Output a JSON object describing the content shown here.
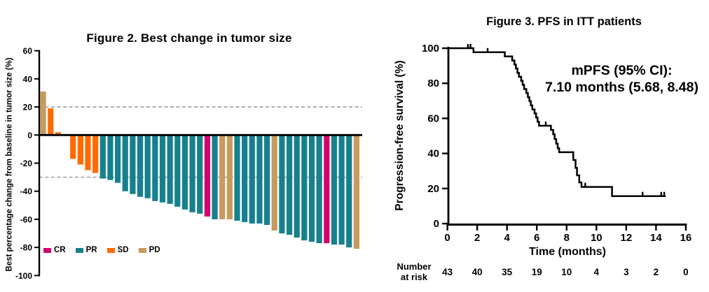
{
  "figure2": {
    "title": "Figure 2.  Best change in tumor size",
    "y_axis_label": "Best percentage change from baseline in tumor size (%)",
    "legend": [
      {
        "label": "CR",
        "color": "#D4006E"
      },
      {
        "label": "PR",
        "color": "#17808E"
      },
      {
        "label": "SD",
        "color": "#FF6B00"
      },
      {
        "label": "PD",
        "color": "#C69B5E"
      }
    ],
    "chart_data": {
      "type": "bar",
      "title": "Figure 2.  Best change in tumor size",
      "xlabel": "",
      "ylabel": "Best percentage change from baseline in tumor size (%)",
      "ylim": [
        -100,
        60
      ],
      "y_ticks": [
        60,
        40,
        20,
        0,
        -20,
        -40,
        -60,
        -80,
        -100
      ],
      "reference_lines": [
        20,
        -30
      ],
      "grid": false,
      "legend_position": "bottom-left",
      "response_colors": {
        "CR": "#D4006E",
        "PR": "#17808E",
        "SD": "#FF6B00",
        "PD": "#C69B5E"
      },
      "bars": [
        {
          "value": 31,
          "response": "PD"
        },
        {
          "value": 19,
          "response": "SD"
        },
        {
          "value": 2,
          "response": "SD"
        },
        {
          "value": 0,
          "response": "SD"
        },
        {
          "value": -17,
          "response": "SD"
        },
        {
          "value": -21,
          "response": "SD"
        },
        {
          "value": -25,
          "response": "SD"
        },
        {
          "value": -27,
          "response": "SD"
        },
        {
          "value": -31,
          "response": "PR"
        },
        {
          "value": -32,
          "response": "PR"
        },
        {
          "value": -34,
          "response": "PR"
        },
        {
          "value": -40,
          "response": "PR"
        },
        {
          "value": -42,
          "response": "PR"
        },
        {
          "value": -44,
          "response": "PR"
        },
        {
          "value": -45,
          "response": "PR"
        },
        {
          "value": -47,
          "response": "PR"
        },
        {
          "value": -48,
          "response": "PR"
        },
        {
          "value": -49,
          "response": "PR"
        },
        {
          "value": -51,
          "response": "PR"
        },
        {
          "value": -53,
          "response": "PR"
        },
        {
          "value": -55,
          "response": "PR"
        },
        {
          "value": -56,
          "response": "PR"
        },
        {
          "value": -58,
          "response": "CR"
        },
        {
          "value": -60,
          "response": "PR"
        },
        {
          "value": -60,
          "response": "PD"
        },
        {
          "value": -60,
          "response": "PD"
        },
        {
          "value": -61,
          "response": "PR"
        },
        {
          "value": -62,
          "response": "PR"
        },
        {
          "value": -63,
          "response": "PR"
        },
        {
          "value": -63,
          "response": "PR"
        },
        {
          "value": -64,
          "response": "PR"
        },
        {
          "value": -68,
          "response": "PD"
        },
        {
          "value": -70,
          "response": "PR"
        },
        {
          "value": -71,
          "response": "PR"
        },
        {
          "value": -73,
          "response": "PR"
        },
        {
          "value": -75,
          "response": "PR"
        },
        {
          "value": -76,
          "response": "PR"
        },
        {
          "value": -77,
          "response": "PR"
        },
        {
          "value": -77,
          "response": "CR"
        },
        {
          "value": -78,
          "response": "PR"
        },
        {
          "value": -78,
          "response": "PR"
        },
        {
          "value": -80,
          "response": "PR"
        },
        {
          "value": -81,
          "response": "PD"
        }
      ]
    }
  },
  "figure3": {
    "title": "Figure 3.  PFS in ITT patients",
    "y_axis_label": "Progression-free survival (%)",
    "x_axis_label": "Time (months)",
    "annotation_line1": "mPFS (95% CI):",
    "annotation_line2": "7.10 months (5.68, 8.48)",
    "number_at_risk_label_line1": "Number",
    "number_at_risk_label_line2": "at risk",
    "chart_data": {
      "type": "line",
      "subtype": "kaplan-meier-step",
      "title": "Figure 3.  PFS in ITT patients",
      "xlabel": "Time (months)",
      "ylabel": "Progression-free survival (%)",
      "xlim": [
        0,
        16
      ],
      "ylim": [
        0,
        100
      ],
      "x_ticks": [
        0,
        2,
        4,
        6,
        8,
        10,
        12,
        14,
        16
      ],
      "y_ticks": [
        0,
        20,
        40,
        60,
        80,
        100
      ],
      "grid": false,
      "median_pfs_months": 7.1,
      "ci95": [
        5.68,
        8.48
      ],
      "curve_start": {
        "t": 0,
        "survival": 100
      },
      "steps": [
        [
          1.75,
          97.7
        ],
        [
          3.85,
          95.3
        ],
        [
          4.35,
          93.0
        ],
        [
          4.5,
          90.7
        ],
        [
          4.6,
          88.4
        ],
        [
          4.7,
          86.0
        ],
        [
          4.8,
          83.7
        ],
        [
          4.95,
          81.4
        ],
        [
          5.05,
          79.1
        ],
        [
          5.15,
          76.7
        ],
        [
          5.3,
          74.4
        ],
        [
          5.4,
          72.1
        ],
        [
          5.5,
          69.8
        ],
        [
          5.6,
          67.4
        ],
        [
          5.7,
          65.1
        ],
        [
          5.85,
          62.8
        ],
        [
          5.95,
          60.5
        ],
        [
          6.05,
          58.1
        ],
        [
          6.15,
          55.8
        ],
        [
          6.95,
          53.4
        ],
        [
          7.1,
          50.9
        ],
        [
          7.2,
          48.2
        ],
        [
          7.3,
          45.6
        ],
        [
          7.4,
          43.0
        ],
        [
          7.5,
          40.7
        ],
        [
          8.45,
          36.3
        ],
        [
          8.6,
          31.8
        ],
        [
          8.7,
          27.5
        ],
        [
          8.85,
          23.5
        ],
        [
          9.0,
          20.9
        ],
        [
          11.05,
          15.7
        ]
      ],
      "curve_end_t": 14.65,
      "censor_marks": [
        [
          1.38,
          100
        ],
        [
          1.55,
          100
        ],
        [
          2.7,
          97.7
        ],
        [
          6.6,
          55.8
        ],
        [
          9.25,
          20.9
        ],
        [
          13.1,
          15.7
        ],
        [
          14.35,
          15.7
        ],
        [
          14.55,
          15.7
        ]
      ],
      "number_at_risk": {
        "times": [
          0,
          2,
          4,
          6,
          8,
          10,
          12,
          14,
          16
        ],
        "values": [
          43,
          40,
          35,
          19,
          10,
          4,
          3,
          2,
          0
        ]
      }
    }
  }
}
